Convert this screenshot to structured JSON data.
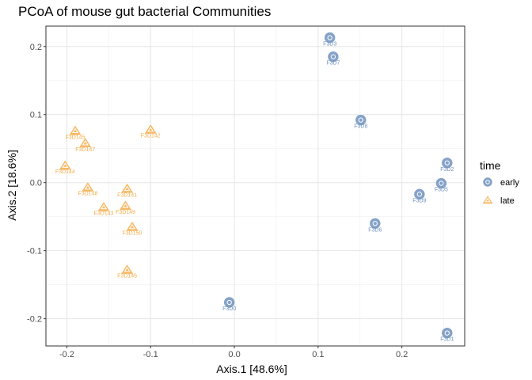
{
  "chart_data": {
    "type": "scatter",
    "title": "PCoA of mouse gut bacterial Communities",
    "xlabel": "Axis.1   [48.6%]",
    "ylabel": "Axis.2   [18.6%]",
    "xlim": [
      -0.225,
      0.275
    ],
    "ylim": [
      -0.24,
      0.23
    ],
    "xticks": [
      -0.2,
      -0.1,
      0.0,
      0.1,
      0.2
    ],
    "xtick_labels": [
      "-0.2",
      "-0.1",
      "0.0",
      "0.1",
      "0.2"
    ],
    "yticks": [
      -0.2,
      -0.1,
      0.0,
      0.1,
      0.2
    ],
    "ytick_labels": [
      "-0.2",
      "-0.1",
      "0.0",
      "0.1",
      "0.2"
    ],
    "grid": true,
    "legend": {
      "title": "time",
      "placement": "right",
      "entries": [
        {
          "label": "early",
          "shape": "circle",
          "color": "#7092be"
        },
        {
          "label": "late",
          "shape": "triangle",
          "color": "#f6ae4e"
        }
      ]
    },
    "series": [
      {
        "name": "early",
        "color": "#7092be",
        "shape": "circle",
        "points": [
          {
            "x": 0.114,
            "y": 0.213,
            "label": "F3D3"
          },
          {
            "x": 0.118,
            "y": 0.185,
            "label": "F3D7"
          },
          {
            "x": 0.151,
            "y": 0.092,
            "label": "F3D8"
          },
          {
            "x": 0.254,
            "y": 0.029,
            "label": "F3D2"
          },
          {
            "x": 0.247,
            "y": -0.001,
            "label": "F3D5"
          },
          {
            "x": 0.221,
            "y": -0.017,
            "label": "F3D9"
          },
          {
            "x": 0.168,
            "y": -0.06,
            "label": "F3D6"
          },
          {
            "x": -0.006,
            "y": -0.176,
            "label": "F3D0"
          },
          {
            "x": 0.254,
            "y": -0.221,
            "label": "F3D1"
          }
        ]
      },
      {
        "name": "late",
        "color": "#f6ae4e",
        "shape": "triangle",
        "points": [
          {
            "x": -0.19,
            "y": 0.076,
            "label": "F3D145"
          },
          {
            "x": -0.1,
            "y": 0.078,
            "label": "F3D142"
          },
          {
            "x": -0.178,
            "y": 0.058,
            "label": "F3D147"
          },
          {
            "x": -0.202,
            "y": 0.025,
            "label": "F3D144"
          },
          {
            "x": -0.175,
            "y": -0.007,
            "label": "F3D148"
          },
          {
            "x": -0.128,
            "y": -0.009,
            "label": "F3D141"
          },
          {
            "x": -0.156,
            "y": -0.036,
            "label": "F3D143"
          },
          {
            "x": -0.13,
            "y": -0.034,
            "label": "F3D149"
          },
          {
            "x": -0.122,
            "y": -0.065,
            "label": "F3D150"
          },
          {
            "x": -0.128,
            "y": -0.128,
            "label": "F3D146"
          }
        ]
      }
    ]
  }
}
